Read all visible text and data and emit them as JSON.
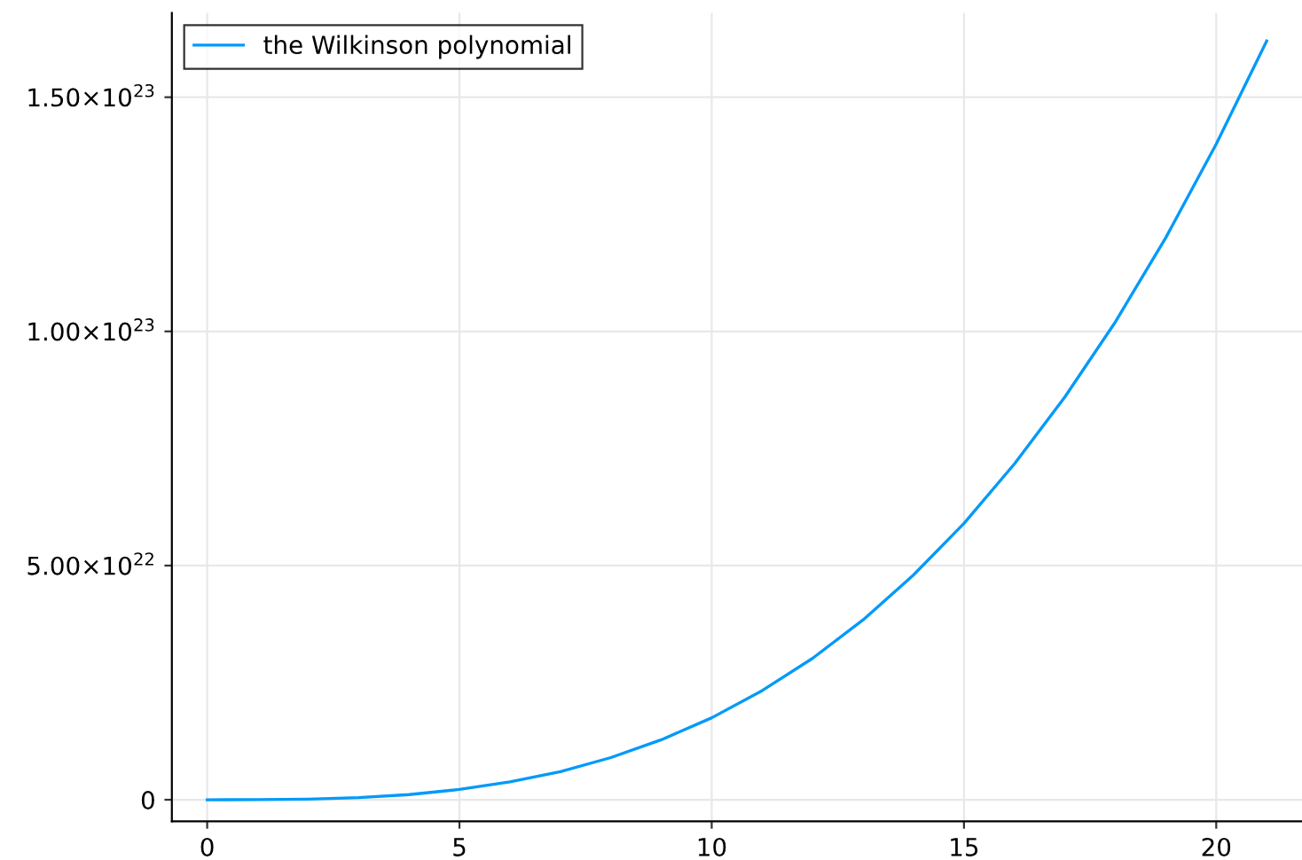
{
  "chart_data": {
    "type": "line",
    "x": [
      0,
      1,
      2,
      3,
      4,
      5,
      6,
      7,
      8,
      9,
      10,
      11,
      12,
      13,
      14,
      15,
      16,
      17,
      18,
      19,
      20,
      21
    ],
    "series": [
      {
        "name": "the Wilkinson polynomial",
        "color": "#009af9",
        "values": [
          0,
          2e+19,
          1.4e+20,
          4.7e+20,
          1.1e+21,
          2.2e+21,
          3.8e+21,
          6e+21,
          9e+21,
          1.28e+22,
          1.75e+22,
          2.33e+22,
          3.02e+22,
          3.84e+22,
          4.8e+22,
          5.9e+22,
          7.17e+22,
          8.6e+22,
          1.02e+23,
          1.2e+23,
          1.4e+23,
          1.62e+23
        ]
      }
    ],
    "xlim": [
      -0.7,
      21.7
    ],
    "xticks": [
      0,
      5,
      10,
      15,
      20
    ],
    "ylim": [
      -4.6e+21,
      1.68e+23
    ],
    "yticks": [
      0,
      {
        "value": 5e+22,
        "label": "5.00×10$^{22}$"
      },
      {
        "value": 1e+23,
        "label": "1.00×10$^{23}$"
      },
      {
        "value": 1.5e+23,
        "label": "1.50×10$^{23}$"
      }
    ],
    "grid": true,
    "legend": "top left",
    "marker": "none",
    "line_style": "solid"
  }
}
